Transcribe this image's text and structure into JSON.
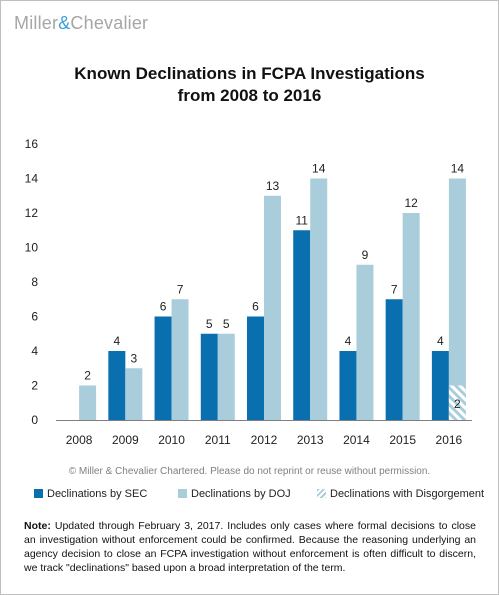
{
  "brand": {
    "name_part1": "Miller",
    "amp": "&",
    "name_part2": "Chevalier"
  },
  "title_line1": "Known Declinations in FCPA Investigations",
  "title_line2": "from 2008 to 2016",
  "copyright": "© Miller & Chevalier Chartered. Please do not reprint or reuse without permission.",
  "note_label": "Note:",
  "note_text": " Updated through February 3, 2017. Includes only cases where formal decisions to close an investigation without enforcement could be confirmed. Because the reasoning underlying an agency decision to close an FCPA investigation without enforcement is often difficult to discern, we track \"declinations\" based upon a broad interpretation of the term.",
  "colors": {
    "sec": "#0a6fae",
    "doj": "#a9cddb",
    "disgorgement_hatch": "#a9cddb"
  },
  "chart_data": {
    "type": "bar",
    "categories": [
      "2008",
      "2009",
      "2010",
      "2011",
      "2012",
      "2013",
      "2014",
      "2015",
      "2016"
    ],
    "series": [
      {
        "name": "Declinations by SEC",
        "values": [
          0,
          4,
          6,
          5,
          6,
          11,
          4,
          7,
          4
        ],
        "labels": [
          "",
          "4",
          "6",
          "5",
          "6",
          "11",
          "4",
          "7",
          "4"
        ]
      },
      {
        "name": "Declinations by DOJ",
        "values": [
          2,
          3,
          7,
          5,
          13,
          14,
          9,
          12,
          14
        ],
        "labels": [
          "2",
          "3",
          "7",
          "5",
          "13",
          "14",
          "9",
          "12",
          "14"
        ]
      },
      {
        "name": "Declinations with Disgorgement",
        "values": [
          0,
          0,
          0,
          0,
          0,
          0,
          0,
          0,
          2
        ],
        "labels": [
          "",
          "",
          "",
          "",
          "",
          "",
          "",
          "",
          "2"
        ]
      }
    ],
    "y_ticks": [
      "0",
      "2",
      "4",
      "6",
      "8",
      "10",
      "12",
      "14",
      "16"
    ],
    "ylim": [
      0,
      16
    ],
    "grid": false,
    "legend": "bottom"
  }
}
